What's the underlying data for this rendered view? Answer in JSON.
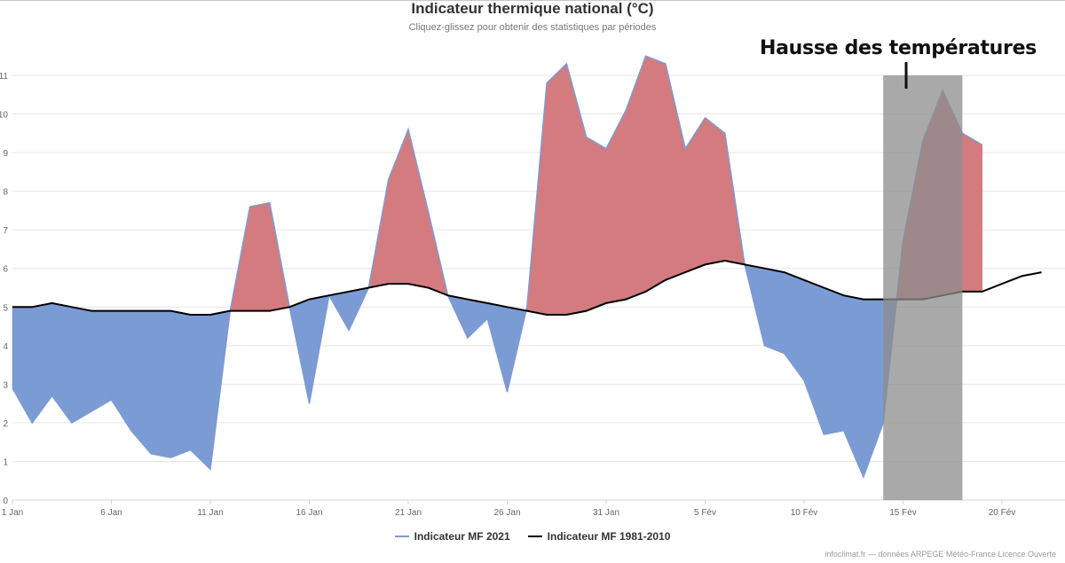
{
  "header": {
    "title": "Indicateur thermique national (°C)",
    "subtitle": "Cliquez-glissez pour obtenir des statistiques par périodes"
  },
  "annotation": {
    "text": "Hausse des températures"
  },
  "credits": "infoclimat.fr — données ARPEGE Météo-France Licence Ouverte",
  "chart_data": {
    "type": "area",
    "x_tick_labels": [
      "1 Jan",
      "6 Jan",
      "11 Jan",
      "16 Jan",
      "21 Jan",
      "26 Jan",
      "31 Jan",
      "5 Fév",
      "10 Fév",
      "15 Fév",
      "20 Fév"
    ],
    "y_tick_labels": [
      "0",
      "1",
      "2",
      "3",
      "4",
      "5",
      "6",
      "7",
      "8",
      "9",
      "10",
      "11"
    ],
    "ylim": [
      0,
      11
    ],
    "x_range_days": [
      1,
      53
    ],
    "grid": true,
    "highlight_band": {
      "from_day": 45,
      "to_day": 49,
      "color": "#8c8c8c"
    },
    "colors": {
      "above": "#d47b80",
      "below": "#7b9bd5",
      "series_2021_line": "#7e9ad2",
      "normal_line": "#000000"
    },
    "series": [
      {
        "name": "Indicateur MF 2021",
        "day": [
          1,
          2,
          3,
          4,
          5,
          6,
          7,
          8,
          9,
          10,
          11,
          12,
          13,
          14,
          15,
          16,
          17,
          18,
          19,
          20,
          21,
          22,
          23,
          24,
          25,
          26,
          27,
          28,
          29,
          30,
          31,
          32,
          33,
          34,
          35,
          36,
          37,
          38,
          39,
          40,
          41,
          42,
          43,
          44,
          45,
          46,
          47,
          48,
          49,
          50,
          51
        ],
        "values": [
          2.9,
          2.0,
          2.7,
          2.0,
          2.3,
          2.6,
          1.8,
          1.2,
          1.1,
          1.3,
          0.8,
          4.9,
          7.6,
          7.7,
          5.0,
          2.5,
          5.3,
          4.4,
          5.5,
          8.3,
          9.6,
          7.5,
          5.3,
          4.2,
          4.7,
          2.8,
          5.0,
          10.8,
          11.3,
          9.4,
          9.1,
          10.1,
          11.5,
          11.3,
          9.1,
          9.9,
          9.5,
          6.1,
          4.0,
          3.8,
          3.1,
          1.7,
          1.8,
          0.6,
          2.0,
          6.7,
          9.3,
          10.6,
          9.5,
          9.2,
          null
        ]
      },
      {
        "name": "Indicateur MF 1981-2010",
        "day": [
          1,
          2,
          3,
          4,
          5,
          6,
          7,
          8,
          9,
          10,
          11,
          12,
          13,
          14,
          15,
          16,
          17,
          18,
          19,
          20,
          21,
          22,
          23,
          24,
          25,
          26,
          27,
          28,
          29,
          30,
          31,
          32,
          33,
          34,
          35,
          36,
          37,
          38,
          39,
          40,
          41,
          42,
          43,
          44,
          45,
          46,
          47,
          48,
          49,
          50,
          51,
          52,
          53
        ],
        "values": [
          5.0,
          5.0,
          5.1,
          5.0,
          4.9,
          4.9,
          4.9,
          4.9,
          4.9,
          4.8,
          4.8,
          4.9,
          4.9,
          4.9,
          5.0,
          5.2,
          5.3,
          5.4,
          5.5,
          5.6,
          5.6,
          5.5,
          5.3,
          5.2,
          5.1,
          5.0,
          4.9,
          4.8,
          4.8,
          4.9,
          5.1,
          5.2,
          5.4,
          5.7,
          5.9,
          6.1,
          6.2,
          6.1,
          6.0,
          5.9,
          5.7,
          5.5,
          5.3,
          5.2,
          5.2,
          5.2,
          5.2,
          5.3,
          5.4,
          5.4,
          5.6,
          5.8,
          5.9
        ]
      }
    ]
  }
}
